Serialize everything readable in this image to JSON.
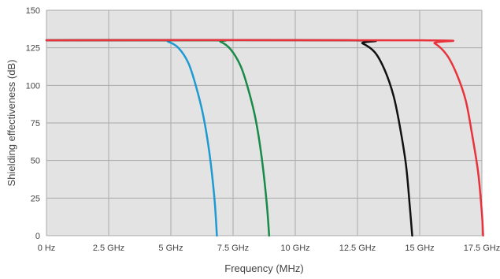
{
  "chart_data": {
    "type": "line",
    "xlabel": "Frequency (MHz)",
    "ylabel": "Shielding effectiveness (dB)",
    "x_unit": "GHz",
    "xlim": [
      0,
      17.5
    ],
    "ylim": [
      0,
      150
    ],
    "x_ticks": [
      0,
      2.5,
      5,
      7.5,
      10,
      12.5,
      15,
      17.5
    ],
    "x_tick_labels": [
      "0 Hz",
      "2.5 GHz",
      "5 GHz",
      "7.5 GHz",
      "10 GHz",
      "12.5 GHz",
      "15 GHz",
      "17.5 GHz"
    ],
    "y_ticks": [
      0,
      25,
      50,
      75,
      100,
      125,
      150
    ],
    "y_tick_labels": [
      "0",
      "25",
      "50",
      "75",
      "100",
      "125",
      "150"
    ],
    "grid": true,
    "background_color": "#e3e3e3",
    "grid_color": "#aaaaaa",
    "series": [
      {
        "color": "#1e9ad2",
        "x": [
          0,
          4.5,
          4.9,
          5.3,
          5.7,
          6.0,
          6.3,
          6.55,
          6.75,
          6.85
        ],
        "y": [
          130,
          130,
          129,
          125,
          115,
          100,
          80,
          55,
          25,
          0
        ]
      },
      {
        "color": "#1a8a48",
        "x": [
          0,
          6.6,
          7.0,
          7.4,
          7.8,
          8.1,
          8.4,
          8.65,
          8.85,
          8.95
        ],
        "y": [
          130,
          130,
          129,
          124,
          113,
          98,
          78,
          52,
          22,
          0
        ]
      },
      {
        "color": "#111111",
        "x": [
          0,
          12.2,
          12.7,
          13.2,
          13.6,
          13.95,
          14.2,
          14.45,
          14.6,
          14.7
        ],
        "y": [
          130,
          130,
          128,
          122,
          110,
          93,
          73,
          47,
          20,
          0
        ]
      },
      {
        "color": "#e8333c",
        "x": [
          0,
          15.1,
          15.6,
          16.1,
          16.5,
          16.85,
          17.1,
          17.35,
          17.5,
          17.55
        ],
        "y": [
          130,
          130,
          128,
          120,
          107,
          90,
          68,
          42,
          15,
          0
        ]
      }
    ]
  }
}
